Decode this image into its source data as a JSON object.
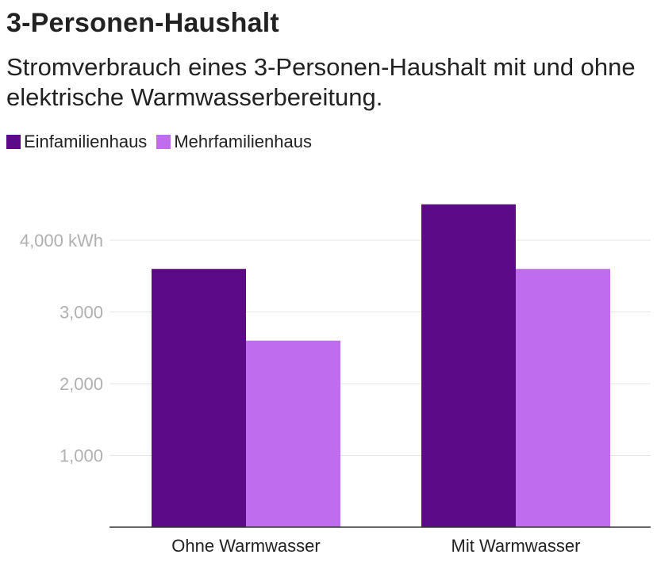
{
  "chart_data": {
    "type": "bar",
    "title": "3-Personen-Haushalt",
    "subtitle": "Stromverbrauch eines 3-Personen-Haushalt mit und ohne elektrische Warmwasserbereitung.",
    "categories": [
      "Ohne Warmwasser",
      "Mit Warmwasser"
    ],
    "series": [
      {
        "name": "Einfamilienhaus",
        "color": "#5c0a87",
        "values": [
          3600,
          4500
        ]
      },
      {
        "name": "Mehrfamilienhaus",
        "color": "#c06cee",
        "values": [
          2600,
          3600
        ]
      }
    ],
    "y_ticks": [
      {
        "value": 1000,
        "label": "1,000"
      },
      {
        "value": 2000,
        "label": "2,000"
      },
      {
        "value": 3000,
        "label": "3,000"
      },
      {
        "value": 4000,
        "label": "4,000 kWh"
      }
    ],
    "ylim": [
      0,
      4500
    ],
    "grid": true,
    "legend_position": "top-left"
  }
}
